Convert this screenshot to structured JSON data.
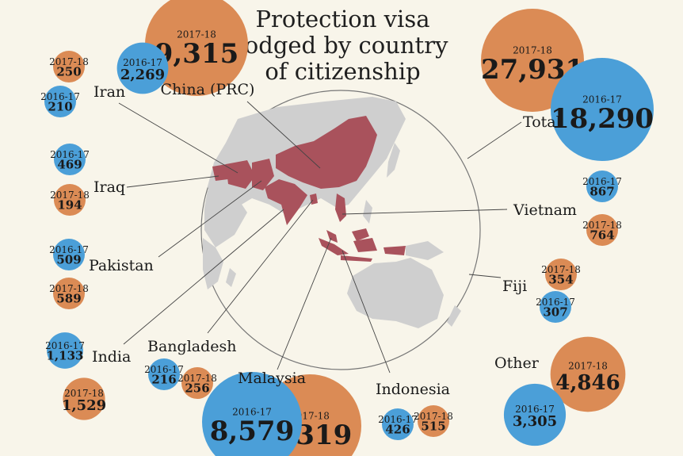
{
  "title_lines": [
    "Protection visa",
    "lodged by country",
    "of citizenship"
  ],
  "colors": {
    "y2016": "#4b9fd8",
    "y2017": "#db8b55",
    "land": "#cfcfcf",
    "highlight": "#a9525c",
    "circle_stroke": "#777777",
    "background": "#f8f5ea"
  },
  "chart_data": {
    "type": "bubble",
    "title": "Protection visa lodged by country of citizenship",
    "years": [
      "2016-17",
      "2017-18"
    ],
    "countries": [
      {
        "name": "China (PRC)",
        "v2016_17": 2269,
        "v2017_18": 9315,
        "label_2016_17": "2,269",
        "label_2017_18": "9,315"
      },
      {
        "name": "Iran",
        "v2016_17": 210,
        "v2017_18": 250,
        "label_2016_17": "210",
        "label_2017_18": "250"
      },
      {
        "name": "Iraq",
        "v2016_17": 469,
        "v2017_18": 194,
        "label_2016_17": "469",
        "label_2017_18": "194"
      },
      {
        "name": "Pakistan",
        "v2016_17": 509,
        "v2017_18": 589,
        "label_2016_17": "509",
        "label_2017_18": "589"
      },
      {
        "name": "India",
        "v2016_17": 1133,
        "v2017_18": 1529,
        "label_2016_17": "1,133",
        "label_2017_18": "1,529"
      },
      {
        "name": "Bangladesh",
        "v2016_17": 216,
        "v2017_18": 256,
        "label_2016_17": "216",
        "label_2017_18": "256"
      },
      {
        "name": "Malaysia",
        "v2016_17": 8579,
        "v2017_18": 9319,
        "label_2016_17": "8,579",
        "label_2017_18": "9,319"
      },
      {
        "name": "Indonesia",
        "v2016_17": 426,
        "v2017_18": 515,
        "label_2016_17": "426",
        "label_2017_18": "515"
      },
      {
        "name": "Vietnam",
        "v2016_17": 867,
        "v2017_18": 764,
        "label_2016_17": "867",
        "label_2017_18": "764"
      },
      {
        "name": "Fiji",
        "v2016_17": 307,
        "v2017_18": 354,
        "label_2016_17": "307",
        "label_2017_18": "354"
      },
      {
        "name": "Other",
        "v2016_17": 3305,
        "v2017_18": 4846,
        "label_2016_17": "3,305",
        "label_2017_18": "4,846"
      },
      {
        "name": "Total",
        "v2016_17": 18290,
        "v2017_18": 27931,
        "label_2016_17": "18,290",
        "label_2017_18": "27,931"
      }
    ]
  }
}
